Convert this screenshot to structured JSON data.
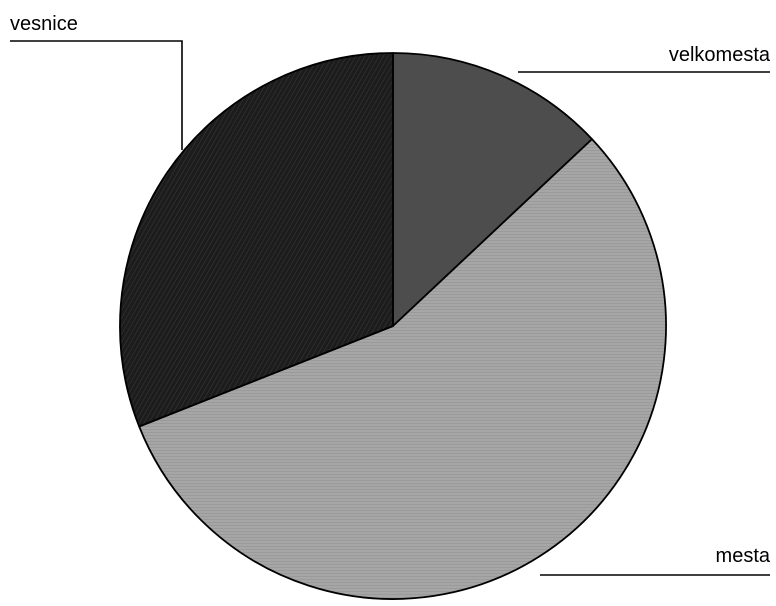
{
  "chart_data": {
    "type": "pie",
    "categories": [
      "velkomesta",
      "mesta",
      "vesnice"
    ],
    "values": [
      13,
      56,
      31
    ],
    "unit": "%",
    "colors": [
      "#4d4d4d",
      "#a6a6a6",
      "#1c1c1c"
    ],
    "title": "",
    "legend": "none",
    "label_placement": [
      "top-right",
      "bottom-right",
      "top-left"
    ]
  }
}
